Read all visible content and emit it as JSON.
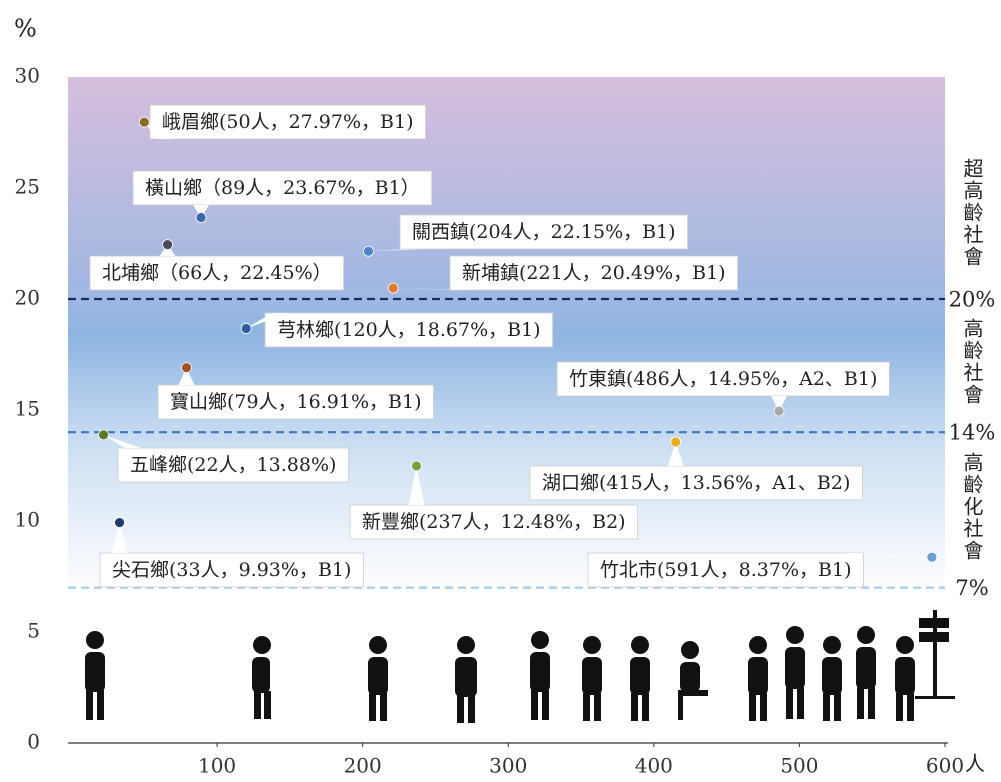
{
  "chart_data": {
    "type": "scatter",
    "y_unit": "%",
    "x_unit": "人",
    "xlim": [
      0,
      600
    ],
    "xticks": [
      100,
      200,
      300,
      400,
      500,
      600
    ],
    "ylim": [
      0,
      30
    ],
    "yticks": [
      0,
      5,
      10,
      15,
      20,
      25,
      30
    ],
    "points": [
      {
        "x": 50,
        "y": 27.97,
        "label": "峨眉鄉(50人，27.97%，B1)",
        "color": "#8b6a2a"
      },
      {
        "x": 89,
        "y": 23.67,
        "label": "橫山鄉（89人，23.67%，B1）",
        "color": "#3a67b0"
      },
      {
        "x": 66,
        "y": 22.45,
        "label": "北埔鄉（66人，22.45%）",
        "color": "#4a4a5a"
      },
      {
        "x": 204,
        "y": 22.15,
        "label": "關西鎮(204人，22.15%，B1)",
        "color": "#4a86c8"
      },
      {
        "x": 221,
        "y": 20.49,
        "label": "新埔鎮(221人，20.49%，B1)",
        "color": "#e07a30"
      },
      {
        "x": 120,
        "y": 18.67,
        "label": "芎林鄉(120人，18.67%，B1)",
        "color": "#2e5e9e"
      },
      {
        "x": 79,
        "y": 16.91,
        "label": "寶山鄉(79人，16.91%，B1)",
        "color": "#a0522d"
      },
      {
        "x": 486,
        "y": 14.95,
        "label": "竹東鎮(486人，14.95%，A2、B1)",
        "color": "#aaaaaa"
      },
      {
        "x": 22,
        "y": 13.88,
        "label": "五峰鄉(22人，13.88%)",
        "color": "#5a7a2a"
      },
      {
        "x": 415,
        "y": 13.56,
        "label": "湖口鄉(415人，13.56%，A1、B2)",
        "color": "#e8b020"
      },
      {
        "x": 237,
        "y": 12.48,
        "label": "新豐鄉(237人，12.48%，B2)",
        "color": "#7aa040"
      },
      {
        "x": 33,
        "y": 9.93,
        "label": "尖石鄉(33人，9.93%，B1)",
        "color": "#1e3a6e"
      },
      {
        "x": 591,
        "y": 8.37,
        "label": "竹北市(591人，8.37%，B1)",
        "color": "#6a9fd0"
      }
    ],
    "thresholds": [
      {
        "value": 20,
        "label": "20%",
        "color": "#1a2a5a"
      },
      {
        "value": 14,
        "label": "14%",
        "color": "#3a78c0"
      },
      {
        "value": 7,
        "label": "7%",
        "color": "#a8cce8"
      }
    ],
    "regions": [
      "超高齡社會",
      "高齡社會",
      "高齡化社會"
    ]
  }
}
